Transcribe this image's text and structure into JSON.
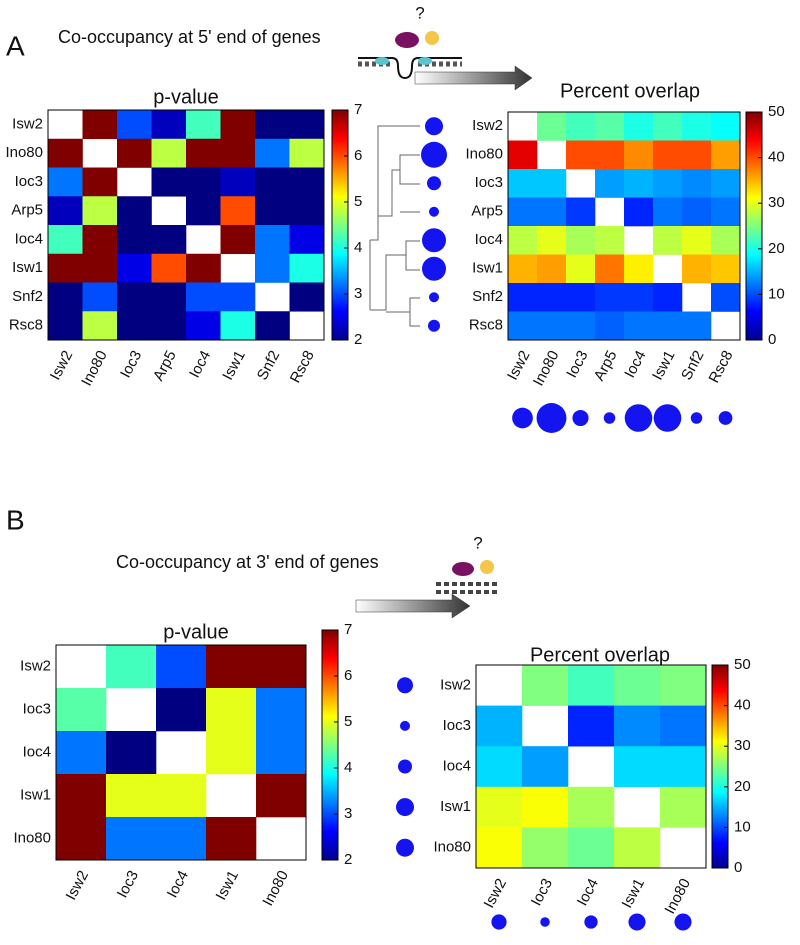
{
  "figure": {
    "panels": [
      {
        "label": "A",
        "heading": "Co-occupancy at 5' end of genes",
        "mark": "?"
      },
      {
        "label": "B",
        "heading": "Co-occupancy at 3' end of genes",
        "mark": "?"
      }
    ]
  },
  "chart_data": [
    {
      "type": "heatmap",
      "title": "p-value",
      "colormap": "jet",
      "categories": [
        "Isw2",
        "Ino80",
        "Ioc3",
        "Arp5",
        "Ioc4",
        "Isw1",
        "Snf2",
        "Rsc8"
      ],
      "values": [
        [
          null,
          7,
          3,
          2.3,
          4.2,
          7,
          2,
          2
        ],
        [
          7,
          null,
          7,
          4.8,
          7,
          7,
          3.2,
          4.8
        ],
        [
          3.2,
          7,
          null,
          2,
          2,
          2.3,
          2,
          2
        ],
        [
          2.3,
          4.8,
          2,
          null,
          2,
          6,
          2,
          2
        ],
        [
          4.2,
          7,
          2,
          2,
          null,
          7,
          3.2,
          2.5
        ],
        [
          7,
          7,
          2.5,
          6,
          7,
          null,
          3.2,
          4
        ],
        [
          2,
          3,
          2,
          2,
          3,
          3,
          null,
          2
        ],
        [
          2,
          4.8,
          2,
          2,
          2.5,
          4,
          2,
          null
        ]
      ],
      "zlim": [
        2,
        7
      ],
      "zticks": [
        2,
        3,
        4,
        5,
        6,
        7
      ]
    },
    {
      "type": "heatmap",
      "title": "Percent overlap",
      "colormap": "jet",
      "categories": [
        "Isw2",
        "Ino80",
        "Ioc3",
        "Arp5",
        "Ioc4",
        "Isw1",
        "Snf2",
        "Rsc8"
      ],
      "values": [
        [
          null,
          24,
          22,
          23,
          20,
          22,
          20,
          19
        ],
        [
          45,
          null,
          40,
          40,
          37,
          40,
          40,
          36
        ],
        [
          16,
          16,
          null,
          14,
          15,
          14,
          13,
          14
        ],
        [
          12,
          12,
          9,
          null,
          8,
          12,
          11,
          12
        ],
        [
          28,
          30,
          27,
          28,
          null,
          28,
          30,
          27
        ],
        [
          35,
          36,
          30,
          38,
          32,
          null,
          35,
          34
        ],
        [
          8,
          8,
          8,
          9,
          9,
          8,
          null,
          10
        ],
        [
          12,
          12,
          12,
          11,
          12,
          12,
          12,
          null
        ]
      ],
      "sizes": [
        9,
        13,
        7,
        5,
        12,
        12,
        5,
        6
      ],
      "zlim": [
        0,
        50
      ],
      "zticks": [
        0,
        10,
        20,
        30,
        40,
        50
      ]
    },
    {
      "type": "heatmap",
      "title": "p-value",
      "colormap": "jet",
      "categories": [
        "Isw2",
        "Ioc3",
        "Ioc4",
        "Isw1",
        "Ino80"
      ],
      "values": [
        [
          null,
          4.2,
          3,
          7,
          7
        ],
        [
          4.3,
          null,
          2,
          5,
          3.2
        ],
        [
          3.2,
          2,
          null,
          5,
          3.2
        ],
        [
          7,
          5,
          5,
          null,
          7
        ],
        [
          7,
          3.2,
          3.2,
          7,
          null
        ]
      ],
      "zlim": [
        2,
        7
      ],
      "zticks": [
        2,
        3,
        4,
        5,
        6,
        7
      ]
    },
    {
      "type": "heatmap",
      "title": "Percent overlap",
      "colormap": "jet",
      "categories": [
        "Isw2",
        "Ioc3",
        "Ioc4",
        "Isw1",
        "Ino80"
      ],
      "values": [
        [
          null,
          25,
          22,
          24,
          25
        ],
        [
          15,
          null,
          8,
          13,
          12
        ],
        [
          17,
          14,
          null,
          17,
          17
        ],
        [
          30,
          31,
          27,
          null,
          27
        ],
        [
          31,
          26,
          24,
          28,
          null
        ]
      ],
      "sizes": [
        8,
        5,
        7,
        9,
        9
      ],
      "zlim": [
        0,
        50
      ],
      "zticks": [
        0,
        10,
        20,
        30,
        40,
        50
      ]
    }
  ]
}
